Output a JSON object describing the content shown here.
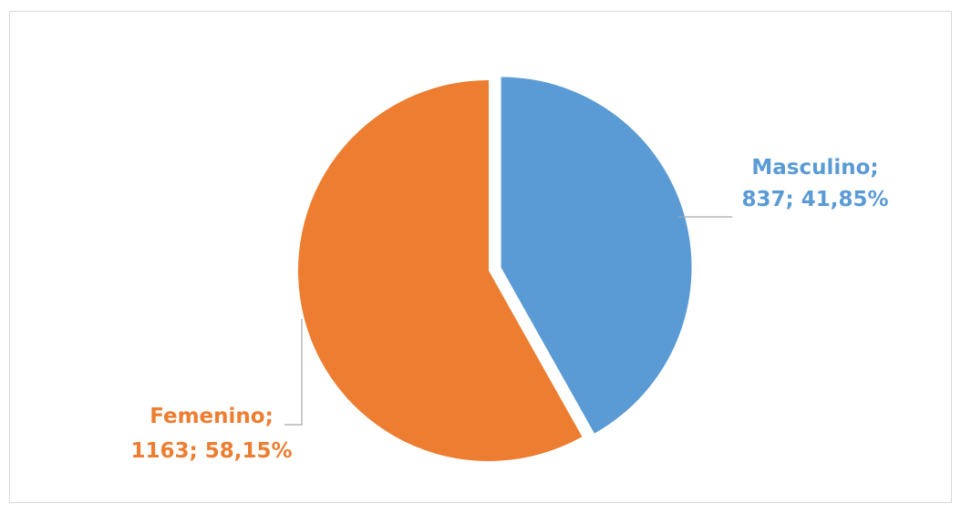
{
  "chart_data": {
    "type": "pie",
    "title": "",
    "categories": [
      "Masculino",
      "Femenino"
    ],
    "values": [
      837,
      1163
    ],
    "percentages": [
      "41,85%",
      "58,15%"
    ],
    "colors": [
      "#5b9bd5",
      "#ed7d31"
    ],
    "exploded": [
      "Masculino"
    ],
    "legend": "none",
    "labels": [
      {
        "line1": "Masculino;",
        "line2": "837; 41,85%"
      },
      {
        "line1": "Femenino;",
        "line2": "1163; 58,15%"
      }
    ]
  }
}
